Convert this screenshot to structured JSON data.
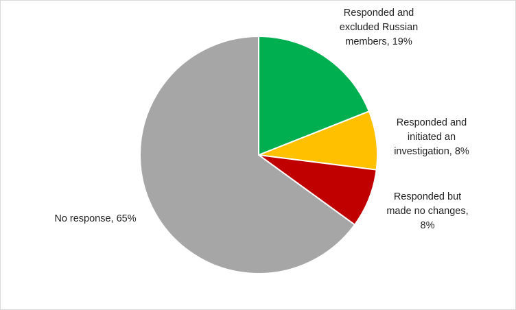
{
  "chart_data": {
    "type": "pie",
    "title": "",
    "start_angle_deg": 0,
    "direction": "clockwise",
    "slices": [
      {
        "name": "Responded and excluded Russian members",
        "value": 19,
        "label_lines": [
          "Responded and",
          "excluded Russian",
          "members, 19%"
        ],
        "color": "#00b050"
      },
      {
        "name": "Responded and initiated an investigation",
        "value": 8,
        "label_lines": [
          "Responded and",
          "initiated an",
          "investigation, 8%"
        ],
        "color": "#ffc000"
      },
      {
        "name": "Responded but made no changes",
        "value": 8,
        "label_lines": [
          "Responded but",
          "made no changes,",
          "8%"
        ],
        "color": "#c00000"
      },
      {
        "name": "No response",
        "value": 65,
        "label_lines": [
          "No response, 65%"
        ],
        "color": "#a6a6a6"
      }
    ],
    "legend": "none"
  }
}
